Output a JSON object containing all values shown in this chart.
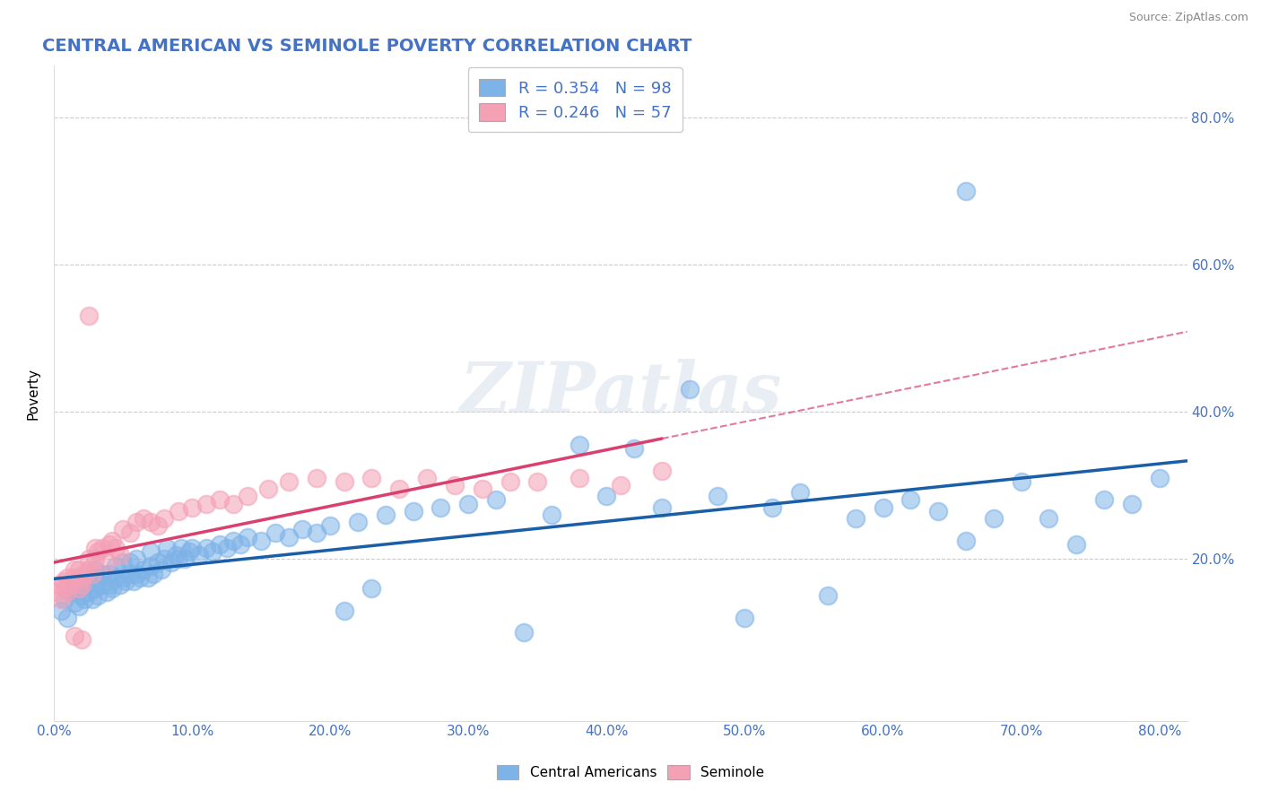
{
  "title": "CENTRAL AMERICAN VS SEMINOLE POVERTY CORRELATION CHART",
  "source": "Source: ZipAtlas.com",
  "ylabel": "Poverty",
  "legend_line1": "R = 0.354   N = 98",
  "legend_line2": "R = 0.246   N = 57",
  "blue_color": "#7EB3E8",
  "pink_color": "#F4A0B5",
  "blue_line_color": "#1A5EA8",
  "pink_line_color": "#D94070",
  "axis_label_color": "#4472C4",
  "title_color": "#4472C4",
  "watermark": "ZIPatlas",
  "xlim": [
    0.0,
    0.82
  ],
  "ylim": [
    -0.02,
    0.87
  ],
  "x_ticks": [
    0.0,
    0.1,
    0.2,
    0.3,
    0.4,
    0.5,
    0.6,
    0.7,
    0.8
  ],
  "y_ticks": [
    0.2,
    0.4,
    0.6,
    0.8
  ],
  "y_tick_labels": [
    "20.0%",
    "40.0%",
    "60.0%",
    "80.0%"
  ],
  "blue_x": [
    0.005,
    0.008,
    0.01,
    0.012,
    0.015,
    0.015,
    0.018,
    0.02,
    0.02,
    0.022,
    0.025,
    0.025,
    0.028,
    0.03,
    0.03,
    0.03,
    0.032,
    0.035,
    0.035,
    0.038,
    0.04,
    0.04,
    0.042,
    0.045,
    0.045,
    0.048,
    0.05,
    0.05,
    0.052,
    0.055,
    0.055,
    0.058,
    0.06,
    0.06,
    0.062,
    0.065,
    0.068,
    0.07,
    0.07,
    0.072,
    0.075,
    0.078,
    0.08,
    0.082,
    0.085,
    0.088,
    0.09,
    0.092,
    0.095,
    0.098,
    0.1,
    0.105,
    0.11,
    0.115,
    0.12,
    0.125,
    0.13,
    0.135,
    0.14,
    0.15,
    0.16,
    0.17,
    0.18,
    0.19,
    0.2,
    0.21,
    0.22,
    0.23,
    0.24,
    0.26,
    0.28,
    0.3,
    0.32,
    0.34,
    0.36,
    0.38,
    0.4,
    0.42,
    0.44,
    0.46,
    0.48,
    0.5,
    0.52,
    0.54,
    0.56,
    0.58,
    0.6,
    0.62,
    0.64,
    0.66,
    0.68,
    0.7,
    0.72,
    0.74,
    0.76,
    0.78,
    0.8,
    0.66
  ],
  "blue_y": [
    0.13,
    0.145,
    0.12,
    0.155,
    0.14,
    0.16,
    0.135,
    0.15,
    0.165,
    0.145,
    0.155,
    0.17,
    0.145,
    0.16,
    0.175,
    0.185,
    0.15,
    0.165,
    0.18,
    0.155,
    0.165,
    0.18,
    0.16,
    0.175,
    0.19,
    0.165,
    0.175,
    0.195,
    0.17,
    0.18,
    0.195,
    0.17,
    0.18,
    0.2,
    0.175,
    0.185,
    0.175,
    0.19,
    0.21,
    0.18,
    0.195,
    0.185,
    0.2,
    0.215,
    0.195,
    0.205,
    0.2,
    0.215,
    0.2,
    0.21,
    0.215,
    0.205,
    0.215,
    0.21,
    0.22,
    0.215,
    0.225,
    0.22,
    0.23,
    0.225,
    0.235,
    0.23,
    0.24,
    0.235,
    0.245,
    0.13,
    0.25,
    0.16,
    0.26,
    0.265,
    0.27,
    0.275,
    0.28,
    0.1,
    0.26,
    0.355,
    0.285,
    0.35,
    0.27,
    0.43,
    0.285,
    0.12,
    0.27,
    0.29,
    0.15,
    0.255,
    0.27,
    0.28,
    0.265,
    0.225,
    0.255,
    0.305,
    0.255,
    0.22,
    0.28,
    0.275,
    0.31,
    0.7
  ],
  "pink_x": [
    0.002,
    0.004,
    0.005,
    0.007,
    0.008,
    0.01,
    0.01,
    0.012,
    0.015,
    0.015,
    0.018,
    0.018,
    0.02,
    0.02,
    0.022,
    0.025,
    0.025,
    0.028,
    0.03,
    0.03,
    0.032,
    0.035,
    0.038,
    0.04,
    0.042,
    0.045,
    0.048,
    0.05,
    0.055,
    0.06,
    0.065,
    0.07,
    0.075,
    0.08,
    0.09,
    0.1,
    0.11,
    0.12,
    0.13,
    0.14,
    0.155,
    0.17,
    0.19,
    0.21,
    0.23,
    0.25,
    0.27,
    0.29,
    0.31,
    0.33,
    0.35,
    0.38,
    0.41,
    0.44,
    0.02,
    0.015,
    0.025
  ],
  "pink_y": [
    0.155,
    0.165,
    0.145,
    0.17,
    0.16,
    0.175,
    0.155,
    0.165,
    0.175,
    0.185,
    0.16,
    0.185,
    0.175,
    0.165,
    0.18,
    0.185,
    0.2,
    0.18,
    0.2,
    0.215,
    0.21,
    0.215,
    0.195,
    0.22,
    0.225,
    0.215,
    0.205,
    0.24,
    0.235,
    0.25,
    0.255,
    0.25,
    0.245,
    0.255,
    0.265,
    0.27,
    0.275,
    0.28,
    0.275,
    0.285,
    0.295,
    0.305,
    0.31,
    0.305,
    0.31,
    0.295,
    0.31,
    0.3,
    0.295,
    0.305,
    0.305,
    0.31,
    0.3,
    0.32,
    0.09,
    0.095,
    0.53
  ]
}
